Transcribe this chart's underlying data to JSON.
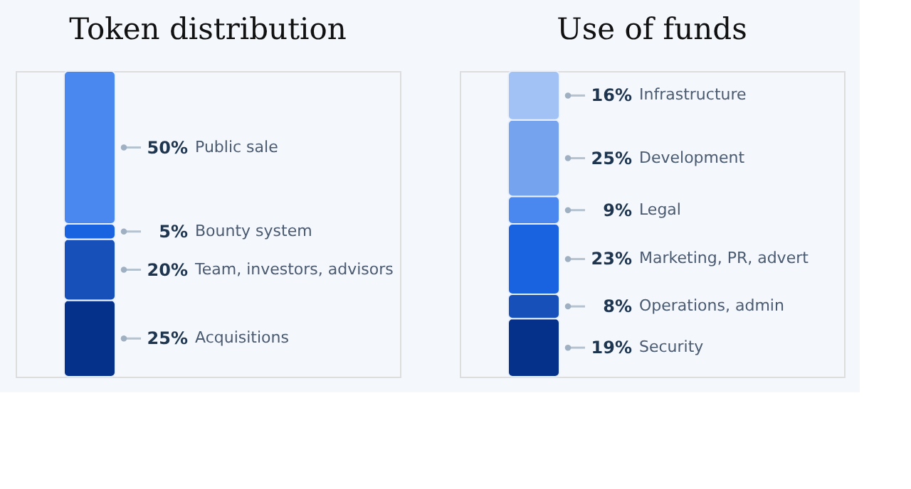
{
  "chart_data": [
    {
      "type": "bar",
      "title": "Token distribution",
      "categories": [
        null
      ],
      "stacked": true,
      "series": [
        {
          "name": "Acquisitions",
          "color": "#05318a",
          "values": [
            25
          ],
          "value_labels": [
            "25%"
          ]
        },
        {
          "name": "Team, investors, advisors",
          "color": "#1650b8",
          "values": [
            20
          ],
          "value_labels": [
            "20%"
          ]
        },
        {
          "name": "Bounty system",
          "color": "#1a63e0",
          "values": [
            5
          ],
          "value_labels": [
            "5%"
          ]
        },
        {
          "name": "Public sale",
          "color": "#4a88ef",
          "values": [
            50
          ],
          "value_labels": [
            "50%"
          ]
        }
      ]
    },
    {
      "type": "bar",
      "title": "Use of funds",
      "categories": [
        null
      ],
      "stacked": true,
      "series": [
        {
          "name": "Security",
          "color": "#05318a",
          "values": [
            19
          ],
          "value_labels": [
            "19%"
          ]
        },
        {
          "name": "Operations, admin",
          "color": "#1650b8",
          "values": [
            8
          ],
          "value_labels": [
            "8%"
          ]
        },
        {
          "name": "Marketing, PR, advert",
          "color": "#1a63e0",
          "values": [
            23
          ],
          "value_labels": [
            "23%"
          ]
        },
        {
          "name": "Legal",
          "color": "#4a88ef",
          "values": [
            9
          ],
          "value_labels": [
            "9%"
          ]
        },
        {
          "name": "Development",
          "color": "#76a3ee",
          "values": [
            25
          ],
          "value_labels": [
            "25%"
          ]
        },
        {
          "name": "Infrastructure",
          "color": "#a2c1f5",
          "values": [
            16
          ],
          "value_labels": [
            "16%"
          ]
        }
      ]
    }
  ]
}
